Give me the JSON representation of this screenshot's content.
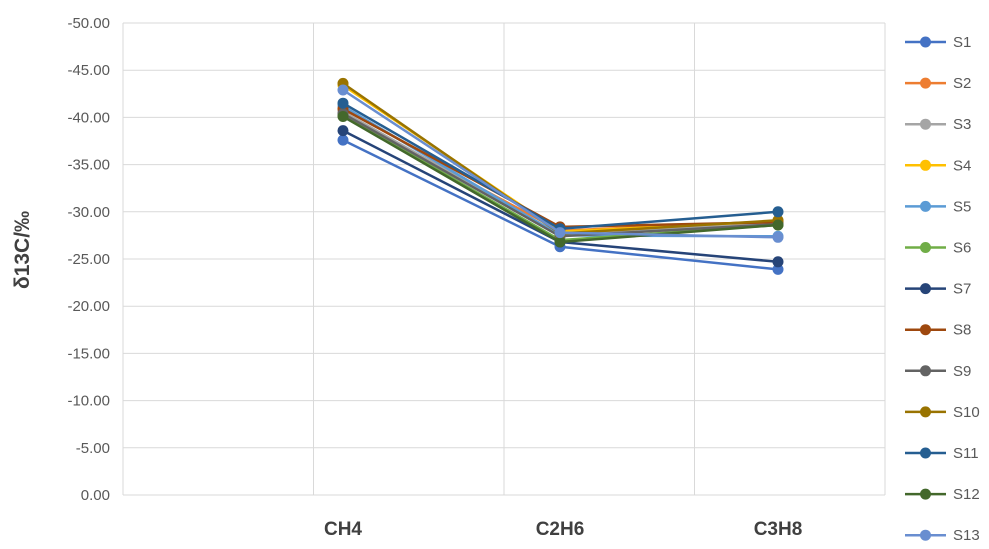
{
  "chart_data": {
    "type": "line",
    "title": "",
    "xlabel": "",
    "ylabel": "δ13C/‰",
    "categories": [
      "CH4",
      "C2H6",
      "C3H8"
    ],
    "x_category_slots": [
      "",
      "CH4",
      "C2H6",
      "C3H8"
    ],
    "y_axis": {
      "min": 0,
      "max": -50,
      "step": -5,
      "reversed": true,
      "tick_labels": [
        "-50.00",
        "-45.00",
        "-40.00",
        "-35.00",
        "-30.00",
        "-25.00",
        "-20.00",
        "-15.00",
        "-10.00",
        "-5.00",
        "0.00"
      ]
    },
    "grid": true,
    "legend_position": "right",
    "series": [
      {
        "name": "S1",
        "color": "#4472C4",
        "values": [
          -37.6,
          -26.3,
          -23.9
        ]
      },
      {
        "name": "S2",
        "color": "#ED7D31",
        "values": [
          -40.3,
          -28.0,
          -29.0
        ]
      },
      {
        "name": "S3",
        "color": "#A5A5A5",
        "values": [
          -40.6,
          -27.6,
          -28.8
        ]
      },
      {
        "name": "S4",
        "color": "#FFC000",
        "values": [
          -43.4,
          -27.9,
          -29.0
        ]
      },
      {
        "name": "S5",
        "color": "#5B9BD5",
        "values": [
          -41.2,
          -27.5,
          -27.4
        ]
      },
      {
        "name": "S6",
        "color": "#70AD47",
        "values": [
          -40.2,
          -27.0,
          -28.6
        ]
      },
      {
        "name": "S7",
        "color": "#264478",
        "values": [
          -38.6,
          -26.8,
          -24.7
        ]
      },
      {
        "name": "S8",
        "color": "#9E480E",
        "values": [
          -40.9,
          -28.4,
          -28.9
        ]
      },
      {
        "name": "S9",
        "color": "#636363",
        "values": [
          -40.4,
          -27.4,
          -28.7
        ]
      },
      {
        "name": "S10",
        "color": "#997300",
        "values": [
          -43.6,
          -27.7,
          -29.1
        ]
      },
      {
        "name": "S11",
        "color": "#255E91",
        "values": [
          -41.5,
          -28.2,
          -30.0
        ]
      },
      {
        "name": "S12",
        "color": "#43682B",
        "values": [
          -40.1,
          -26.8,
          -28.6
        ]
      },
      {
        "name": "S13",
        "color": "#698ED0",
        "values": [
          -42.9,
          -27.8,
          -27.3
        ]
      }
    ]
  }
}
